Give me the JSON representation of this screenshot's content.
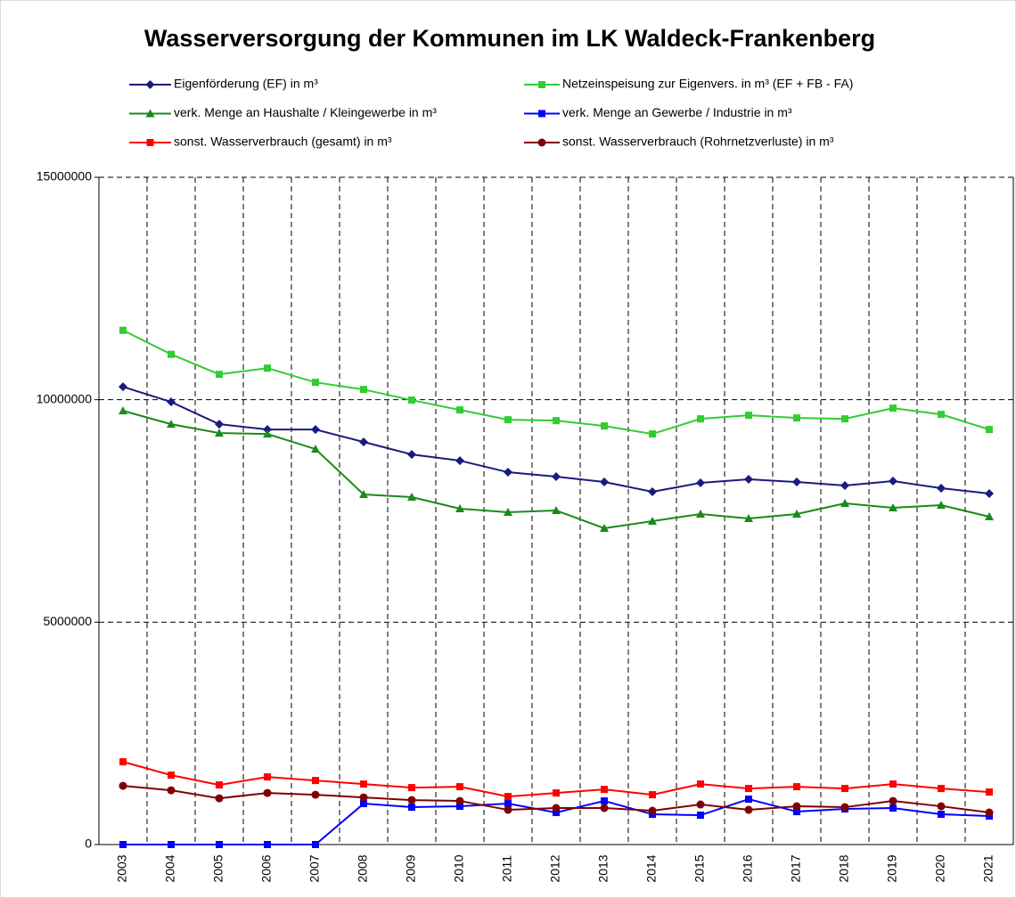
{
  "chart_data": {
    "type": "line",
    "title": "Wasserversorgung der Kommunen im LK Waldeck-Frankenberg",
    "categories": [
      "2003",
      "2004",
      "2005",
      "2006",
      "2007",
      "2008",
      "2009",
      "2010",
      "2011",
      "2012",
      "2013",
      "2014",
      "2015",
      "2016",
      "2017",
      "2018",
      "2019",
      "2020",
      "2021"
    ],
    "ylim": [
      0,
      15000000
    ],
    "yticks": [
      0,
      5000000,
      10000000,
      15000000
    ],
    "grid": true,
    "series": [
      {
        "name": "Eigenförderung (EF) in m³",
        "color": "#1a1a80",
        "marker": "diamond",
        "values": [
          10290000,
          9950000,
          9450000,
          9330000,
          9330000,
          9050000,
          8770000,
          8630000,
          8370000,
          8270000,
          8150000,
          7930000,
          8130000,
          8210000,
          8150000,
          8070000,
          8170000,
          8010000,
          7890000
        ]
      },
      {
        "name": "Netzeinspeisung zur Eigenvers. in m³ (EF + FB - FA)",
        "color": "#33cc33",
        "marker": "square",
        "values": [
          11560000,
          11020000,
          10570000,
          10710000,
          10390000,
          10230000,
          9990000,
          9770000,
          9550000,
          9530000,
          9410000,
          9230000,
          9570000,
          9650000,
          9590000,
          9570000,
          9810000,
          9670000,
          9330000
        ]
      },
      {
        "name": "verk. Menge an Haushalte / Kleingewerbe in m³",
        "color": "#1a8a1a",
        "marker": "triangle",
        "values": [
          9750000,
          9450000,
          9250000,
          9230000,
          8890000,
          7870000,
          7810000,
          7550000,
          7470000,
          7510000,
          7110000,
          7270000,
          7430000,
          7330000,
          7430000,
          7670000,
          7570000,
          7630000,
          7370000
        ]
      },
      {
        "name": "verk. Menge an Gewerbe / Industrie in m³",
        "color": "#0000ff",
        "marker": "square",
        "values": [
          0,
          0,
          0,
          0,
          0,
          920000,
          840000,
          860000,
          920000,
          720000,
          980000,
          680000,
          660000,
          1020000,
          740000,
          800000,
          820000,
          680000,
          640000
        ]
      },
      {
        "name": "sonst. Wasserverbrauch (gesamt) in m³",
        "color": "#ff0000",
        "marker": "square",
        "values": [
          1860000,
          1560000,
          1340000,
          1520000,
          1440000,
          1360000,
          1280000,
          1300000,
          1080000,
          1160000,
          1240000,
          1120000,
          1360000,
          1260000,
          1300000,
          1260000,
          1360000,
          1260000,
          1180000
        ]
      },
      {
        "name": "sonst. Wasserverbrauch (Rohrnetzverluste) in m³",
        "color": "#800000",
        "marker": "circle",
        "values": [
          1320000,
          1220000,
          1040000,
          1160000,
          1120000,
          1060000,
          1000000,
          980000,
          780000,
          820000,
          820000,
          760000,
          900000,
          780000,
          860000,
          840000,
          980000,
          860000,
          720000
        ]
      }
    ]
  }
}
